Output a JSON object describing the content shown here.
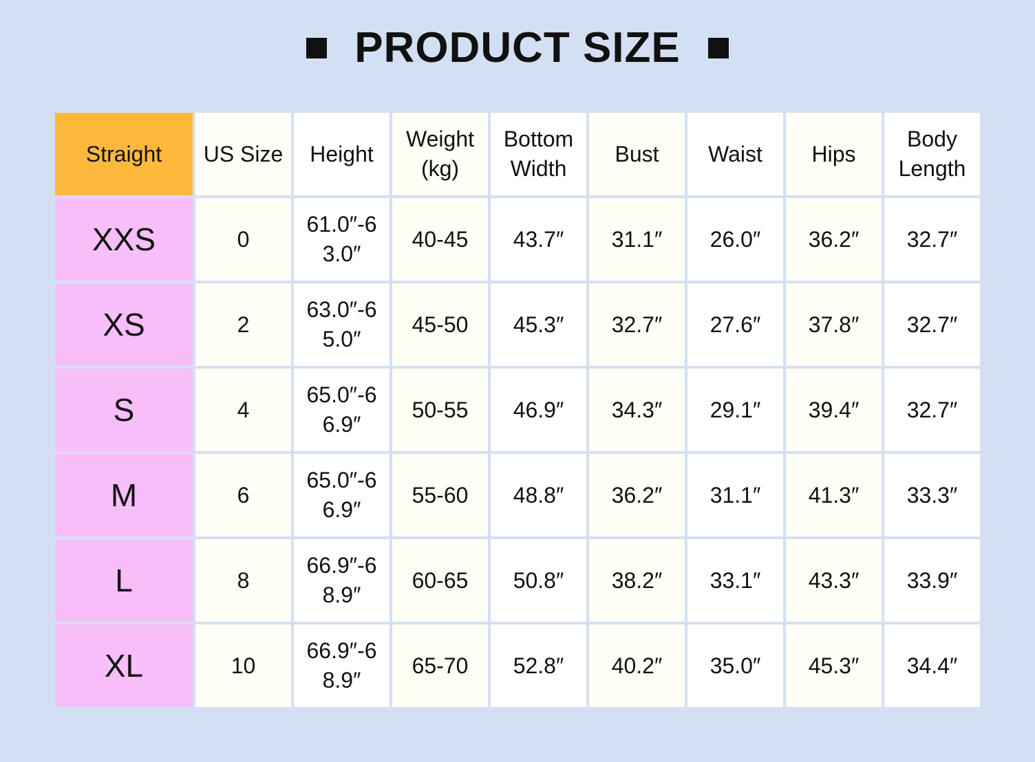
{
  "title": "PRODUCT SIZE",
  "colors": {
    "background": "#d3e0f3",
    "corner": "#fdb93c",
    "size_column": "#f7bef9",
    "cream_column": "#fffff5"
  },
  "table": {
    "headers": [
      "Straight",
      "US Size",
      "Height",
      "Weight (kg)",
      "Bottom Width",
      "Bust",
      "Waist",
      "Hips",
      "Body Length"
    ],
    "rows": [
      [
        "XXS",
        "0",
        "61.0″-63.0″",
        "40-45",
        "43.7″",
        "31.1″",
        "26.0″",
        "36.2″",
        "32.7″"
      ],
      [
        "XS",
        "2",
        "63.0″-65.0″",
        "45-50",
        "45.3″",
        "32.7″",
        "27.6″",
        "37.8″",
        "32.7″"
      ],
      [
        "S",
        "4",
        "65.0″-66.9″",
        "50-55",
        "46.9″",
        "34.3″",
        "29.1″",
        "39.4″",
        "32.7″"
      ],
      [
        "M",
        "6",
        "65.0″-66.9″",
        "55-60",
        "48.8″",
        "36.2″",
        "31.1″",
        "41.3″",
        "33.3″"
      ],
      [
        "L",
        "8",
        "66.9″-68.9″",
        "60-65",
        "50.8″",
        "38.2″",
        "33.1″",
        "43.3″",
        "33.9″"
      ],
      [
        "XL",
        "10",
        "66.9″-68.9″",
        "65-70",
        "52.8″",
        "40.2″",
        "35.0″",
        "45.3″",
        "34.4″"
      ]
    ]
  }
}
